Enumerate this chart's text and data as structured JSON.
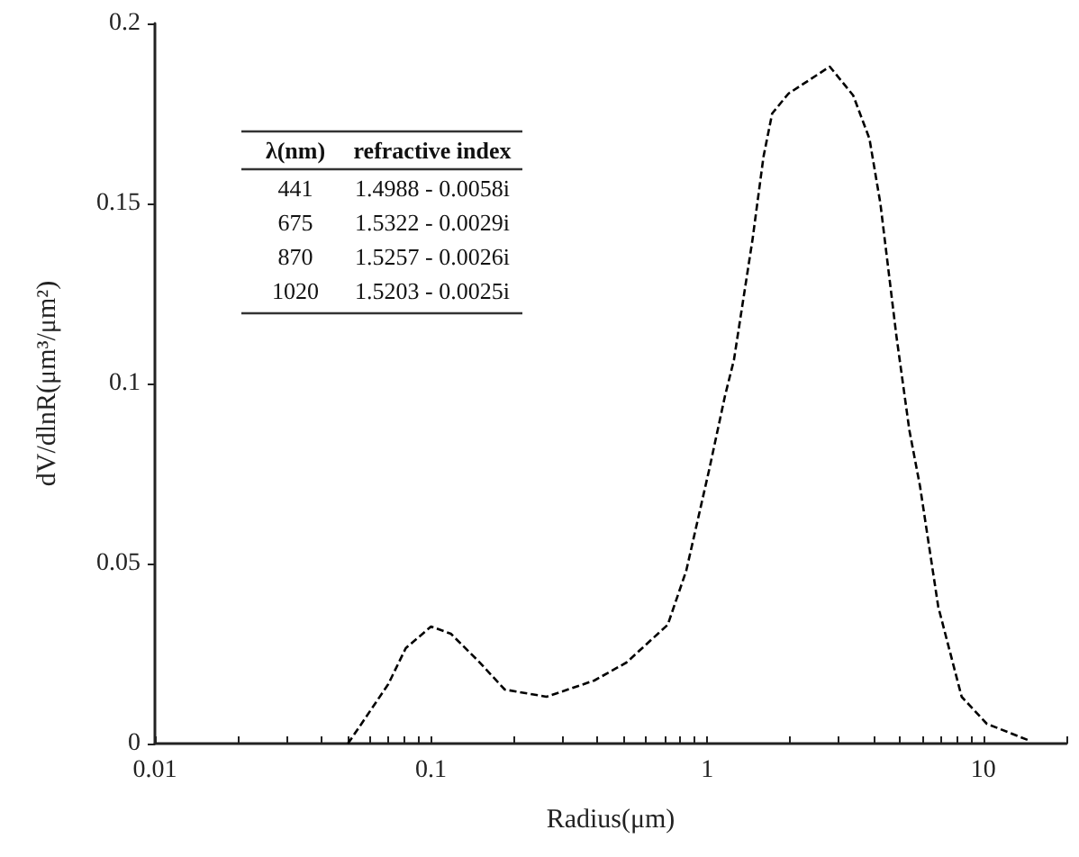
{
  "chart_data": {
    "type": "line",
    "xlabel": "Radius(μm)",
    "ylabel": "dV/dlnR(μm³/μm²)",
    "log": "x",
    "xlim": [
      0.01,
      20
    ],
    "xticks": [
      0.01,
      {
        "value": 0.02,
        "label": null
      },
      {
        "value": 0.03,
        "label": null
      },
      {
        "value": 0.04,
        "label": null
      },
      {
        "value": 0.05,
        "label": null
      },
      {
        "value": 0.06,
        "label": null
      },
      {
        "value": 0.07,
        "label": null
      },
      {
        "value": 0.08,
        "label": null
      },
      {
        "value": 0.09,
        "label": null
      },
      0.1,
      {
        "value": 0.2,
        "label": null
      },
      {
        "value": 0.3,
        "label": null
      },
      {
        "value": 0.4,
        "label": null
      },
      {
        "value": 0.5,
        "label": null
      },
      {
        "value": 0.6,
        "label": null
      },
      {
        "value": 0.7,
        "label": null
      },
      {
        "value": 0.8,
        "label": null
      },
      {
        "value": 0.9,
        "label": null
      },
      1,
      {
        "value": 2,
        "label": null
      },
      {
        "value": 3,
        "label": null
      },
      {
        "value": 4,
        "label": null
      },
      {
        "value": 5,
        "label": null
      },
      {
        "value": 6,
        "label": null
      },
      {
        "value": 7,
        "label": null
      },
      {
        "value": 8,
        "label": null
      },
      {
        "value": 9,
        "label": null
      },
      10,
      {
        "value": 20,
        "label": null
      }
    ],
    "ylim": [
      0,
      0.2
    ],
    "yticks": [
      0,
      0.05,
      0.1,
      0.15,
      0.2
    ],
    "grid": false,
    "marker": "none",
    "line_style": "dashed",
    "series": [
      {
        "color": "#000000",
        "x": [
          0.05,
          0.056,
          0.07,
          0.081,
          0.1,
          0.118,
          0.148,
          0.185,
          0.262,
          0.39,
          0.51,
          0.72,
          0.84,
          1.02,
          1.16,
          1.25,
          1.46,
          1.6,
          1.72,
          1.97,
          2.78,
          3.38,
          3.87,
          4.24,
          4.85,
          5.4,
          5.9,
          6.87,
          8.35,
          10.3,
          14.5
        ],
        "values": [
          0,
          0.0055,
          0.0165,
          0.0265,
          0.0325,
          0.0305,
          0.023,
          0.015,
          0.013,
          0.0175,
          0.0225,
          0.033,
          0.048,
          0.0765,
          0.0965,
          0.1065,
          0.14,
          0.163,
          0.175,
          0.1805,
          0.188,
          0.18,
          0.168,
          0.15,
          0.113,
          0.087,
          0.0715,
          0.038,
          0.013,
          0.0055,
          0.001
        ]
      }
    ],
    "annotations": [
      "λ(nm)",
      "refractive index",
      "441",
      "1.4988 - 0.0058i",
      "675",
      "1.5322 - 0.0029i",
      "870",
      "1.5257 - 0.0026i",
      "1020",
      "1.5203 - 0.0025i"
    ]
  }
}
